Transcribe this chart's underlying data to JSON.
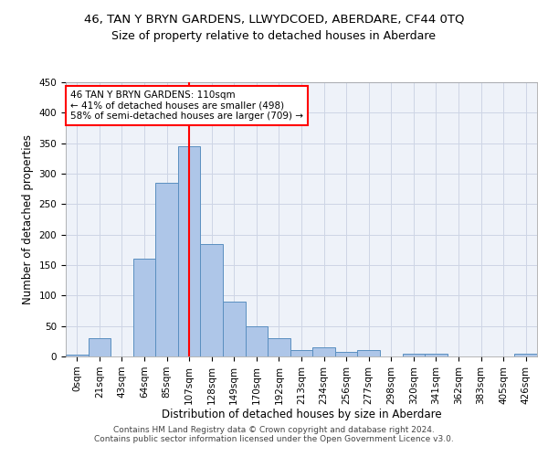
{
  "title": "46, TAN Y BRYN GARDENS, LLWYDCOED, ABERDARE, CF44 0TQ",
  "subtitle": "Size of property relative to detached houses in Aberdare",
  "xlabel": "Distribution of detached houses by size in Aberdare",
  "ylabel": "Number of detached properties",
  "footer_line1": "Contains HM Land Registry data © Crown copyright and database right 2024.",
  "footer_line2": "Contains public sector information licensed under the Open Government Licence v3.0.",
  "bin_labels": [
    "0sqm",
    "21sqm",
    "43sqm",
    "64sqm",
    "85sqm",
    "107sqm",
    "128sqm",
    "149sqm",
    "170sqm",
    "192sqm",
    "213sqm",
    "234sqm",
    "256sqm",
    "277sqm",
    "298sqm",
    "320sqm",
    "341sqm",
    "362sqm",
    "383sqm",
    "405sqm",
    "426sqm"
  ],
  "bar_values": [
    3,
    30,
    0,
    160,
    285,
    345,
    185,
    90,
    50,
    30,
    10,
    15,
    7,
    10,
    0,
    5,
    5,
    0,
    0,
    0,
    5
  ],
  "bar_color": "#aec6e8",
  "bar_edge_color": "#5a8fc0",
  "annotation_text": "46 TAN Y BRYN GARDENS: 110sqm\n← 41% of detached houses are smaller (498)\n58% of semi-detached houses are larger (709) →",
  "annotation_box_color": "white",
  "annotation_box_edge_color": "red",
  "vline_x_index": 5,
  "vline_color": "red",
  "ylim": [
    0,
    450
  ],
  "yticks": [
    0,
    50,
    100,
    150,
    200,
    250,
    300,
    350,
    400,
    450
  ],
  "bg_color": "#eef2f9",
  "grid_color": "#cdd5e5",
  "title_fontsize": 9.5,
  "subtitle_fontsize": 9,
  "axis_label_fontsize": 8.5,
  "tick_fontsize": 7.5,
  "annot_fontsize": 7.5,
  "footer_fontsize": 6.5
}
